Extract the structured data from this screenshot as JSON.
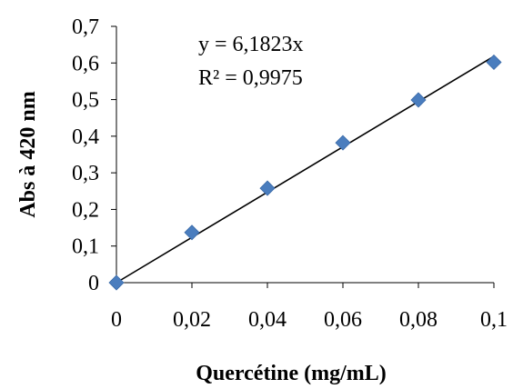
{
  "chart_data": {
    "type": "scatter",
    "xlabel": "Quercétine (mg/mL)",
    "ylabel": "Abs à 420 nm",
    "xlim": [
      0,
      0.1
    ],
    "ylim": [
      0,
      0.7
    ],
    "x_ticks": [
      "0",
      "0,02",
      "0,04",
      "0,06",
      "0,08",
      "0,1"
    ],
    "y_ticks": [
      "0",
      "0,1",
      "0,2",
      "0,3",
      "0,4",
      "0,5",
      "0,6",
      "0,7"
    ],
    "grid": false,
    "series": [
      {
        "x": [
          0,
          0.02,
          0.04,
          0.06,
          0.08,
          0.1
        ],
        "y": [
          0,
          0.137,
          0.258,
          0.382,
          0.499,
          0.602
        ],
        "marker": "diamond",
        "color": "#4a7dbe"
      }
    ],
    "trendline": {
      "slope": 6.1823,
      "intercept": 0,
      "color": "#000000"
    },
    "annotations": {
      "equation": "y = 6,1823x",
      "r_squared": "R² = 0,9975"
    }
  }
}
